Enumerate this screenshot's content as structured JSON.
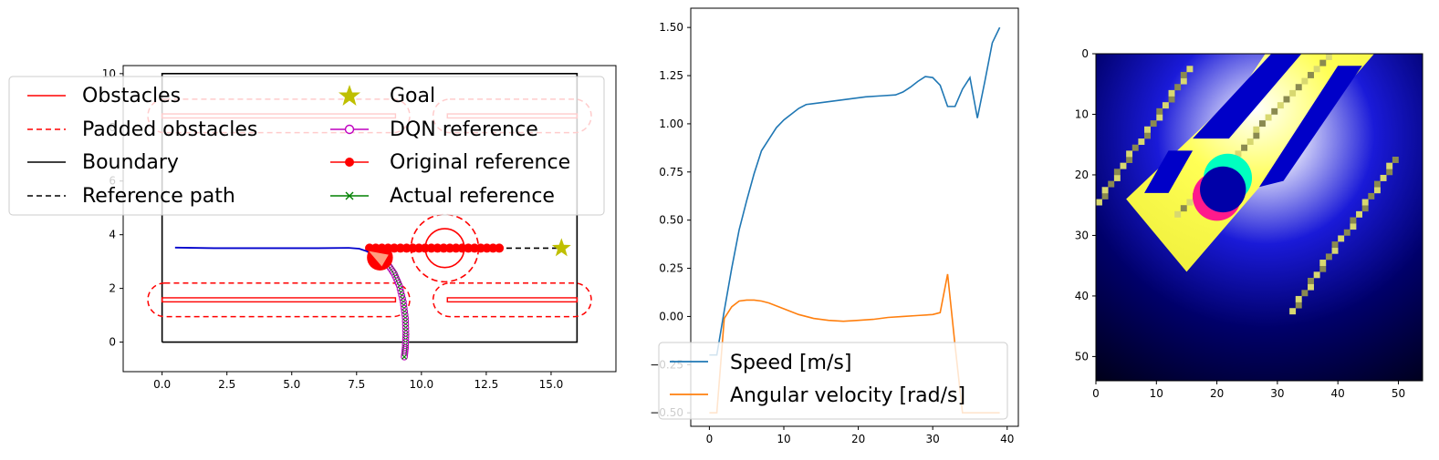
{
  "chart_data": [
    {
      "type": "line",
      "title": "",
      "xlim": [
        -1.5,
        17.5
      ],
      "ylim": [
        -1.1,
        10.3
      ],
      "xticks": [
        "0.0",
        "2.5",
        "5.0",
        "7.5",
        "10.0",
        "12.5",
        "15.0"
      ],
      "xtick_values": [
        0,
        2.5,
        5,
        7.5,
        10,
        12.5,
        15
      ],
      "yticks": [
        "0",
        "2",
        "4",
        "6",
        "8",
        "10"
      ],
      "ytick_values": [
        0,
        2,
        4,
        6,
        8,
        10
      ],
      "legend": [
        {
          "label": "Obstacles",
          "style": "solid",
          "color": "#ff0000"
        },
        {
          "label": "Goal",
          "style": "star",
          "color": "#bfbf00"
        },
        {
          "label": "Padded obstacles",
          "style": "dashed",
          "color": "#ff0000"
        },
        {
          "label": "DQN reference",
          "style": "open-circle",
          "color": "#bf00bf"
        },
        {
          "label": "Boundary",
          "style": "solid",
          "color": "#000000"
        },
        {
          "label": "Original reference",
          "style": "filled-circle",
          "color": "#ff0000"
        },
        {
          "label": "Reference path",
          "style": "dashed",
          "color": "#000000"
        },
        {
          "label": "Actual reference",
          "style": "x",
          "color": "#008000"
        }
      ],
      "boundary": [
        [
          0,
          0
        ],
        [
          16,
          0
        ],
        [
          16,
          10
        ],
        [
          0,
          10
        ],
        [
          0,
          0
        ]
      ],
      "obstacles": [
        {
          "x": [
            0,
            9
          ],
          "y": [
            1.5,
            1.65
          ]
        },
        {
          "x": [
            11,
            16
          ],
          "y": [
            1.5,
            1.65
          ]
        },
        {
          "x": [
            0,
            9
          ],
          "y": [
            8.35,
            8.5
          ]
        },
        {
          "x": [
            11,
            16
          ],
          "y": [
            8.35,
            8.5
          ]
        }
      ],
      "padding": 0.55,
      "dynamic_obstacle": {
        "center": [
          10.9,
          3.5
        ],
        "radius": 0.75,
        "padded_radius": 1.3
      },
      "goal": [
        15.4,
        3.5
      ],
      "reference_path": {
        "x": [
          8.0,
          15.4
        ],
        "y": [
          3.5,
          3.5
        ]
      },
      "original_reference": {
        "x_start": 8.0,
        "x_end": 13.0,
        "y": 3.5,
        "count": 22
      },
      "trajectory": {
        "x": [
          0.5,
          2.0,
          4.0,
          6.0,
          7.2,
          7.6,
          7.9,
          8.2
        ],
        "y": [
          3.52,
          3.5,
          3.5,
          3.5,
          3.51,
          3.48,
          3.38,
          3.2
        ]
      },
      "robot": {
        "center": [
          8.4,
          3.15
        ],
        "radius": 0.5,
        "heading_deg": 150
      },
      "dqn_reference": {
        "x": [
          8.7,
          8.95,
          9.15,
          9.3,
          9.38,
          9.4,
          9.38,
          9.34
        ],
        "y": [
          2.9,
          2.55,
          2.1,
          1.5,
          0.9,
          0.3,
          -0.2,
          -0.55
        ]
      }
    },
    {
      "type": "line",
      "title": "",
      "xlim": [
        -2.5,
        41.5
      ],
      "ylim": [
        -0.57,
        1.6
      ],
      "xticks": [
        "0",
        "10",
        "20",
        "30",
        "40"
      ],
      "xtick_values": [
        0,
        10,
        20,
        30,
        40
      ],
      "yticks": [
        "−0.50",
        "−0.25",
        "0.00",
        "0.25",
        "0.50",
        "0.75",
        "1.00",
        "1.25",
        "1.50"
      ],
      "ytick_values": [
        -0.5,
        -0.25,
        0,
        0.25,
        0.5,
        0.75,
        1.0,
        1.25,
        1.5
      ],
      "legend": [
        {
          "label": "Speed [m/s]",
          "color": "#1f77b4"
        },
        {
          "label": "Angular velocity [rad/s]",
          "color": "#ff7f0e"
        }
      ],
      "series": [
        {
          "name": "Speed [m/s]",
          "color": "#1f77b4",
          "x": [
            0,
            1,
            2,
            3,
            4,
            5,
            6,
            7,
            8,
            9,
            10,
            11,
            12,
            13,
            15,
            17,
            19,
            21,
            23,
            25,
            26,
            27,
            28,
            29,
            30,
            31,
            32,
            33,
            34,
            35,
            36,
            37,
            38,
            39
          ],
          "y": [
            -0.2,
            -0.2,
            0.03,
            0.25,
            0.45,
            0.6,
            0.74,
            0.86,
            0.92,
            0.98,
            1.02,
            1.05,
            1.08,
            1.1,
            1.11,
            1.12,
            1.13,
            1.14,
            1.145,
            1.15,
            1.165,
            1.19,
            1.22,
            1.245,
            1.24,
            1.2,
            1.09,
            1.09,
            1.18,
            1.24,
            1.03,
            1.22,
            1.42,
            1.5
          ]
        },
        {
          "name": "Angular velocity [rad/s]",
          "color": "#ff7f0e",
          "x": [
            0,
            1,
            2,
            3,
            4,
            5,
            6,
            7,
            8,
            10,
            12,
            14,
            16,
            18,
            20,
            22,
            24,
            26,
            28,
            30,
            31,
            32,
            33,
            34,
            35,
            36,
            37,
            38,
            39
          ],
          "y": [
            -0.5,
            -0.5,
            -0.01,
            0.05,
            0.08,
            0.085,
            0.085,
            0.08,
            0.07,
            0.04,
            0.01,
            -0.01,
            -0.02,
            -0.025,
            -0.02,
            -0.015,
            -0.005,
            0.0,
            0.005,
            0.01,
            0.02,
            0.22,
            -0.15,
            -0.5,
            -0.5,
            -0.5,
            -0.5,
            -0.5,
            -0.5
          ]
        }
      ]
    },
    {
      "type": "heatmap",
      "title": "",
      "size": 54,
      "xticks": [
        "0",
        "10",
        "20",
        "30",
        "40",
        "50"
      ],
      "xtick_values": [
        0,
        10,
        20,
        30,
        40,
        50
      ],
      "yticks": [
        "0",
        "10",
        "20",
        "30",
        "40",
        "50"
      ],
      "ytick_values": [
        0,
        10,
        20,
        30,
        40,
        50
      ],
      "colors": {
        "free": "#ffff55",
        "obstacle": "#0000c8",
        "background": "#000010",
        "robot_a": "#ff1a8c",
        "robot_b": "#00ffc0"
      },
      "free_region": {
        "polygon": [
          [
            5,
            24
          ],
          [
            15,
            36
          ],
          [
            46,
            0
          ],
          [
            28,
            0
          ],
          [
            24,
            6
          ]
        ]
      },
      "robot_cells": {
        "center": [
          21,
          23
        ],
        "radius": 4
      }
    }
  ]
}
